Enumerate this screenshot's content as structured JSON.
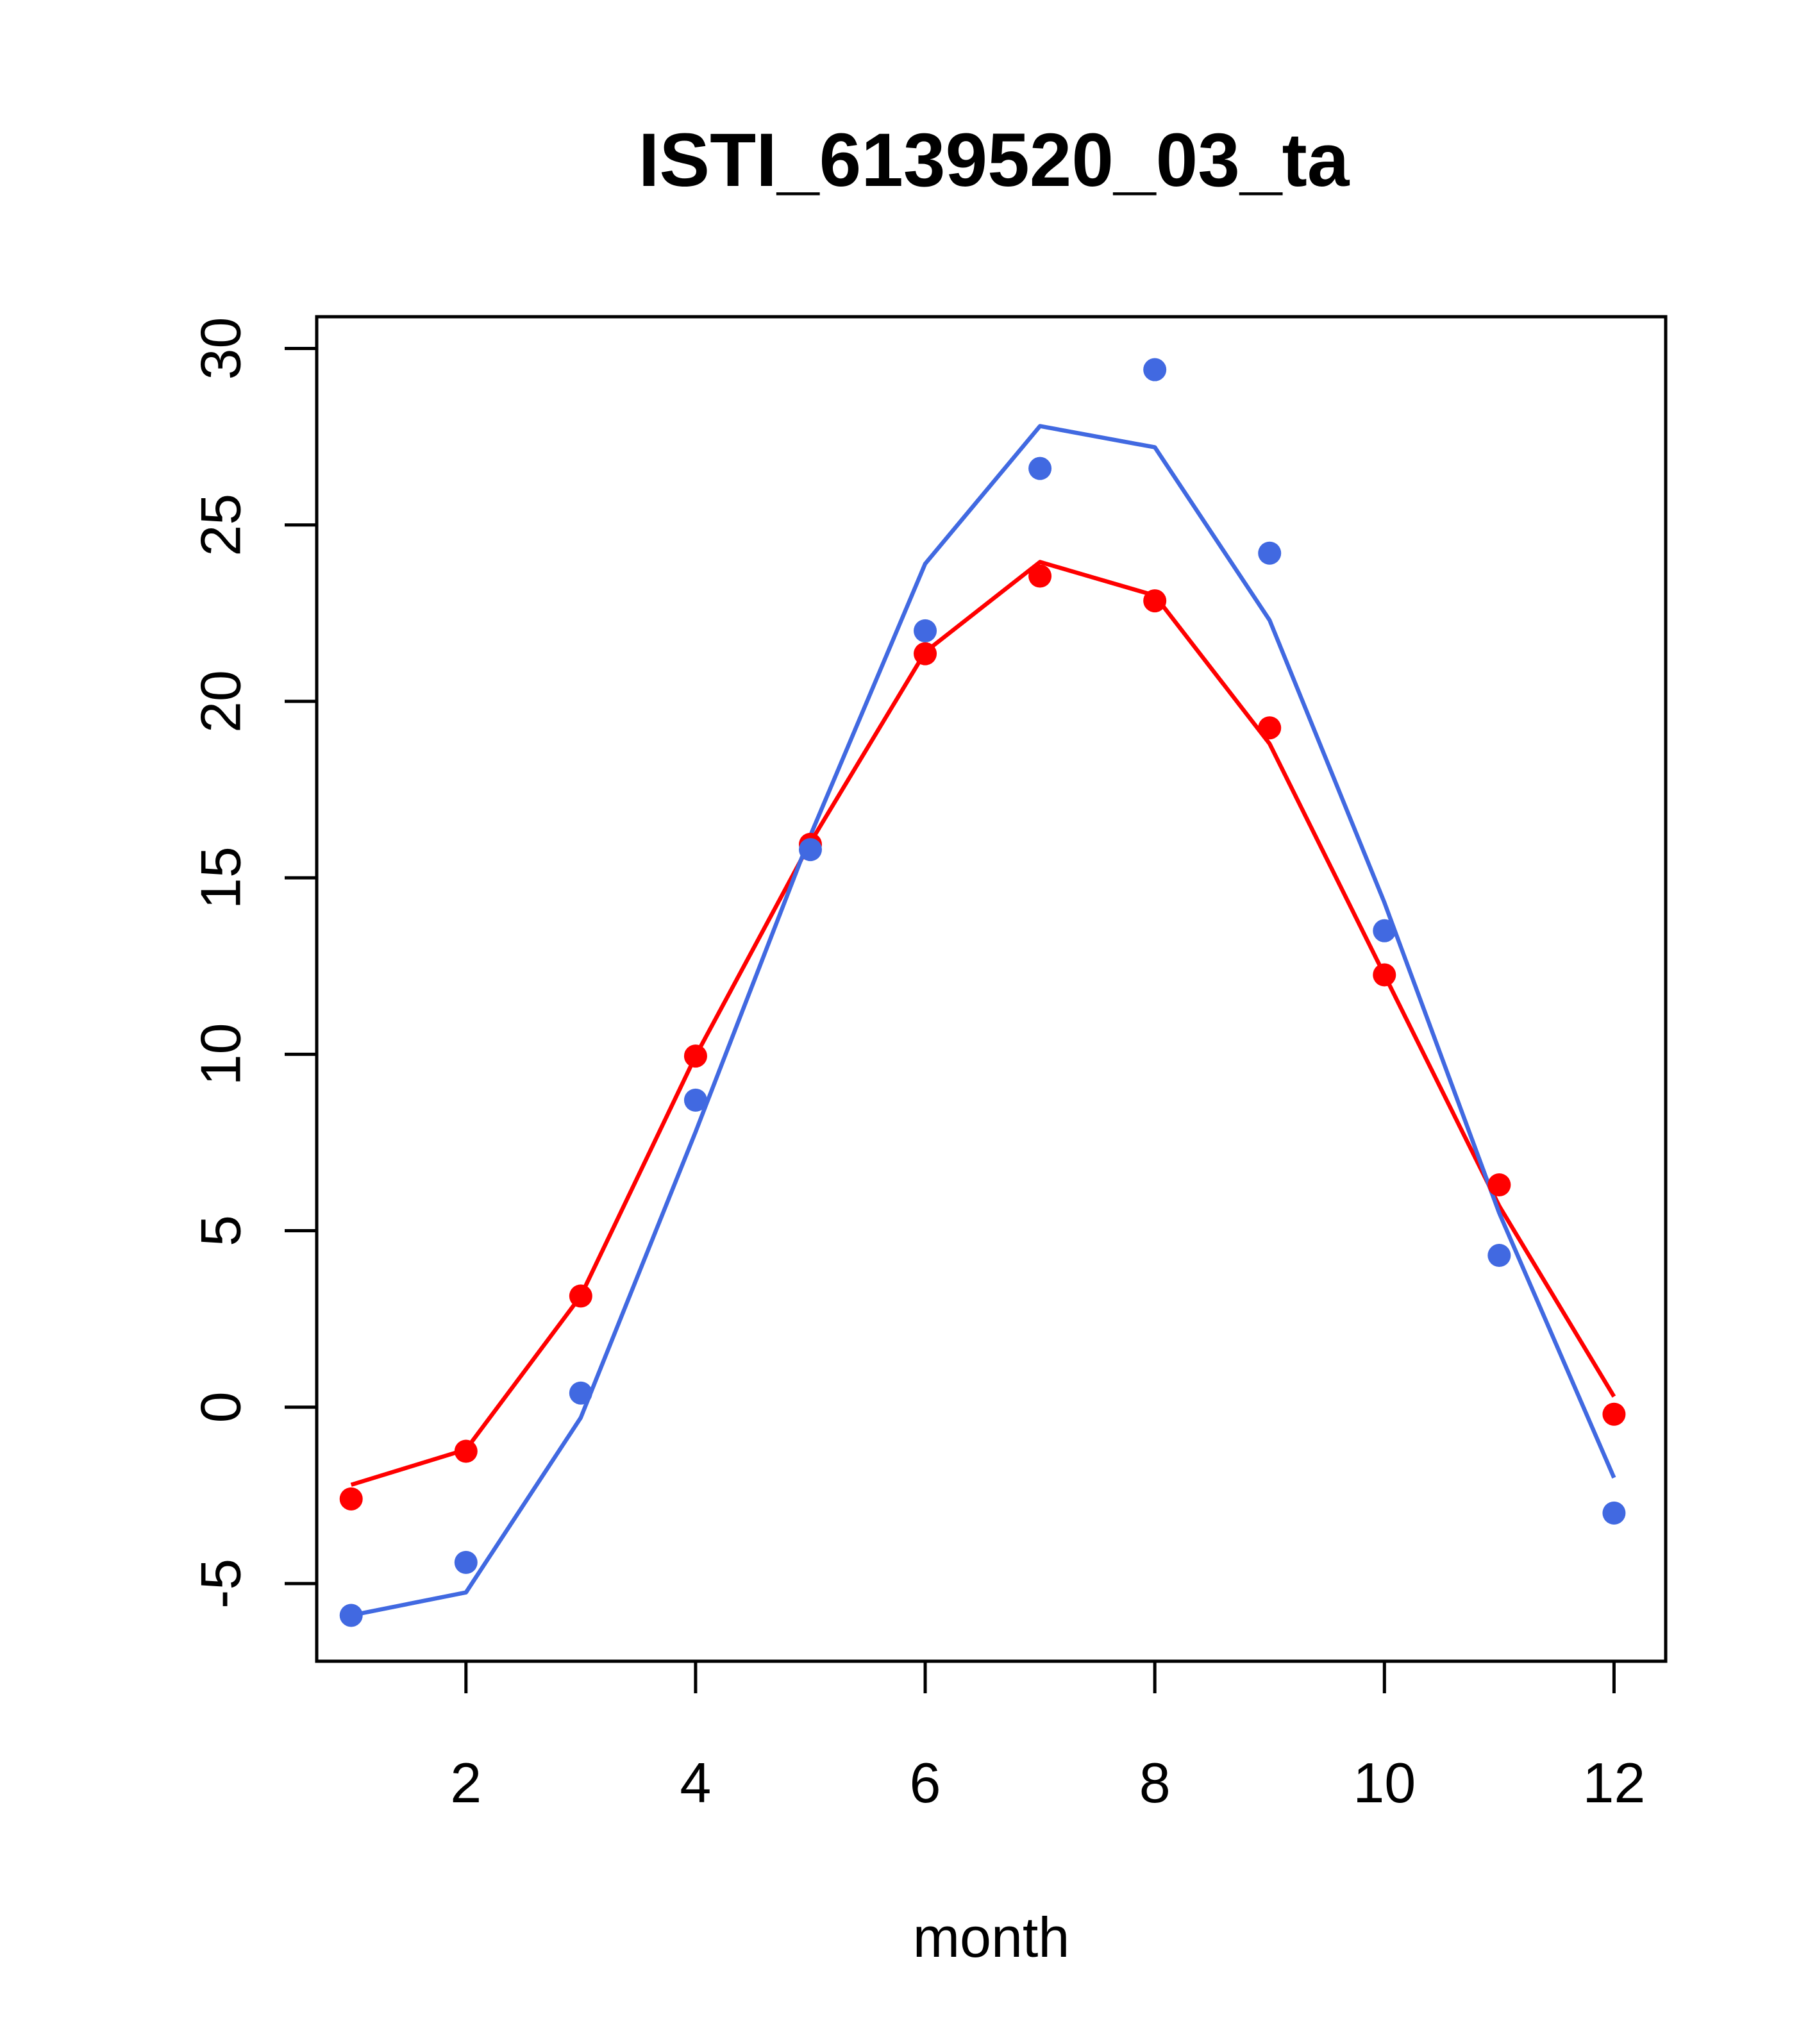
{
  "chart_data": {
    "type": "scatter",
    "title": "ISTI_6139520_03_ta",
    "xlabel": "month",
    "ylabel": "",
    "xlim": [
      0.7,
      12.45
    ],
    "ylim": [
      -7.2,
      30.9
    ],
    "x_ticks": [
      2,
      4,
      6,
      8,
      10,
      12
    ],
    "x_tick_labels": [
      "2",
      "4",
      "6",
      "8",
      "10",
      "12"
    ],
    "y_ticks": [
      -5,
      0,
      5,
      10,
      15,
      20,
      25,
      30
    ],
    "y_tick_labels": [
      "-5",
      "0",
      "5",
      "10",
      "15",
      "20",
      "25",
      "30"
    ],
    "grid": false,
    "legend": "none",
    "x": [
      1,
      2,
      3,
      4,
      5,
      6,
      7,
      8,
      9,
      10,
      11,
      12
    ],
    "series": [
      {
        "color": "#FF0000",
        "points": [
          -2.6,
          -1.25,
          3.15,
          9.95,
          15.95,
          21.35,
          23.55,
          22.85,
          19.25,
          12.25,
          6.3,
          -0.2
        ],
        "line": [
          -2.2,
          -1.2,
          3.15,
          9.95,
          16.0,
          21.4,
          23.95,
          23.0,
          18.8,
          12.25,
          5.7,
          0.3
        ]
      },
      {
        "color": "#4169E1",
        "points": [
          -5.9,
          -4.4,
          0.4,
          8.7,
          15.8,
          22.0,
          26.6,
          29.4,
          24.2,
          13.5,
          4.3,
          -3.0
        ],
        "line": [
          -5.9,
          -5.25,
          -0.3,
          7.8,
          16.2,
          23.9,
          27.8,
          27.2,
          22.3,
          14.3,
          5.5,
          -2.0
        ]
      }
    ]
  }
}
